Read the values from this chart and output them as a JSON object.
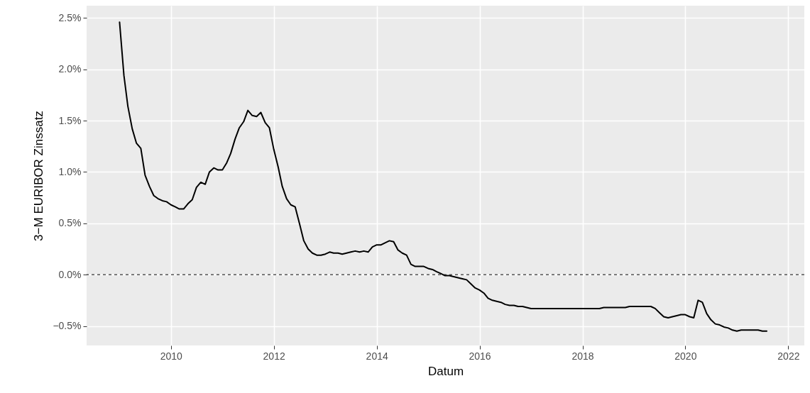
{
  "chart_data": {
    "type": "line",
    "xlabel": "Datum",
    "ylabel": "3−M EURIBOR Zinssatz",
    "xlim": [
      "2008-05-12",
      "2022-04-25"
    ],
    "ylim": [
      -0.69,
      2.62
    ],
    "xticks": [
      "2010",
      "2012",
      "2014",
      "2016",
      "2018",
      "2020",
      "2022"
    ],
    "yticks": [
      {
        "value": -0.5,
        "label": "−0.5%"
      },
      {
        "value": 0,
        "label": "0.0%"
      },
      {
        "value": 0.5,
        "label": "0.5%"
      },
      {
        "value": 1,
        "label": "1.0%"
      },
      {
        "value": 1.5,
        "label": "1.5%"
      },
      {
        "value": 2,
        "label": "2.0%"
      },
      {
        "value": 2.5,
        "label": "2.5%"
      }
    ],
    "grid": true,
    "line_style": "solid",
    "ref_lines": [
      {
        "axis": "y",
        "value": 0,
        "line_style": "dashed",
        "color": "#000000"
      }
    ],
    "x": [
      "2009-01",
      "2009-02",
      "2009-03",
      "2009-04",
      "2009-05",
      "2009-06",
      "2009-07",
      "2009-08",
      "2009-09",
      "2009-10",
      "2009-11",
      "2009-12",
      "2010-01",
      "2010-02",
      "2010-03",
      "2010-04",
      "2010-05",
      "2010-06",
      "2010-07",
      "2010-08",
      "2010-09",
      "2010-10",
      "2010-11",
      "2010-12",
      "2011-01",
      "2011-02",
      "2011-03",
      "2011-04",
      "2011-05",
      "2011-06",
      "2011-07",
      "2011-08",
      "2011-09",
      "2011-10",
      "2011-11",
      "2011-12",
      "2012-01",
      "2012-02",
      "2012-03",
      "2012-04",
      "2012-05",
      "2012-06",
      "2012-07",
      "2012-08",
      "2012-09",
      "2012-10",
      "2012-11",
      "2012-12",
      "2013-01",
      "2013-02",
      "2013-03",
      "2013-04",
      "2013-05",
      "2013-06",
      "2013-07",
      "2013-08",
      "2013-09",
      "2013-10",
      "2013-11",
      "2013-12",
      "2014-01",
      "2014-02",
      "2014-03",
      "2014-04",
      "2014-05",
      "2014-06",
      "2014-07",
      "2014-08",
      "2014-09",
      "2014-10",
      "2014-11",
      "2014-12",
      "2015-01",
      "2015-02",
      "2015-03",
      "2015-04",
      "2015-05",
      "2015-06",
      "2015-07",
      "2015-08",
      "2015-09",
      "2015-10",
      "2015-11",
      "2015-12",
      "2016-01",
      "2016-02",
      "2016-03",
      "2016-04",
      "2016-05",
      "2016-06",
      "2016-07",
      "2016-08",
      "2016-09",
      "2016-10",
      "2016-11",
      "2016-12",
      "2017-01",
      "2017-02",
      "2017-03",
      "2017-04",
      "2017-05",
      "2017-06",
      "2017-07",
      "2017-08",
      "2017-09",
      "2017-10",
      "2017-11",
      "2017-12",
      "2018-01",
      "2018-02",
      "2018-03",
      "2018-04",
      "2018-05",
      "2018-06",
      "2018-07",
      "2018-08",
      "2018-09",
      "2018-10",
      "2018-11",
      "2018-12",
      "2019-01",
      "2019-02",
      "2019-03",
      "2019-04",
      "2019-05",
      "2019-06",
      "2019-07",
      "2019-08",
      "2019-09",
      "2019-10",
      "2019-11",
      "2019-12",
      "2020-01",
      "2020-02",
      "2020-03",
      "2020-04",
      "2020-05",
      "2020-06",
      "2020-07",
      "2020-08",
      "2020-09",
      "2020-10",
      "2020-11",
      "2020-12",
      "2021-01",
      "2021-02",
      "2021-03",
      "2021-04",
      "2021-05",
      "2021-06",
      "2021-07",
      "2021-08"
    ],
    "series": [
      {
        "color": "#000000",
        "values": [
          2.46,
          1.94,
          1.64,
          1.42,
          1.28,
          1.23,
          0.97,
          0.86,
          0.77,
          0.74,
          0.72,
          0.71,
          0.68,
          0.66,
          0.64,
          0.64,
          0.69,
          0.73,
          0.85,
          0.9,
          0.88,
          1.0,
          1.04,
          1.02,
          1.02,
          1.09,
          1.18,
          1.32,
          1.43,
          1.49,
          1.6,
          1.55,
          1.54,
          1.58,
          1.48,
          1.43,
          1.22,
          1.05,
          0.86,
          0.74,
          0.68,
          0.66,
          0.5,
          0.33,
          0.25,
          0.21,
          0.19,
          0.19,
          0.2,
          0.22,
          0.21,
          0.21,
          0.2,
          0.21,
          0.22,
          0.23,
          0.22,
          0.23,
          0.22,
          0.27,
          0.29,
          0.29,
          0.31,
          0.33,
          0.32,
          0.24,
          0.21,
          0.19,
          0.1,
          0.08,
          0.08,
          0.08,
          0.06,
          0.05,
          0.03,
          0.01,
          -0.01,
          -0.01,
          -0.02,
          -0.03,
          -0.04,
          -0.05,
          -0.09,
          -0.13,
          -0.15,
          -0.18,
          -0.23,
          -0.25,
          -0.26,
          -0.27,
          -0.29,
          -0.3,
          -0.3,
          -0.31,
          -0.31,
          -0.32,
          -0.33,
          -0.33,
          -0.33,
          -0.33,
          -0.33,
          -0.33,
          -0.33,
          -0.33,
          -0.33,
          -0.33,
          -0.33,
          -0.33,
          -0.33,
          -0.33,
          -0.33,
          -0.33,
          -0.33,
          -0.32,
          -0.32,
          -0.32,
          -0.32,
          -0.32,
          -0.32,
          -0.31,
          -0.31,
          -0.31,
          -0.31,
          -0.31,
          -0.31,
          -0.33,
          -0.37,
          -0.41,
          -0.42,
          -0.41,
          -0.4,
          -0.39,
          -0.39,
          -0.41,
          -0.42,
          -0.25,
          -0.27,
          -0.38,
          -0.44,
          -0.48,
          -0.49,
          -0.51,
          -0.52,
          -0.54,
          -0.55,
          -0.54,
          -0.54,
          -0.54,
          -0.54,
          -0.54,
          -0.55,
          -0.55
        ]
      }
    ]
  }
}
